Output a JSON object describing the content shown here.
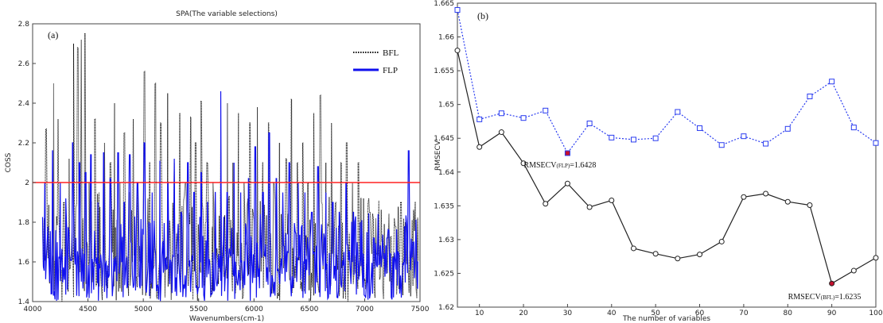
{
  "chart_data": [
    {
      "type": "line",
      "title": "SPA(The variable selections)",
      "panel_label": "(a)",
      "xlabel": "Wavenumbers(cm-1)",
      "ylabel": "COSS",
      "xlim": [
        4000,
        7500
      ],
      "ylim": [
        1.4,
        2.8
      ],
      "xticks": [
        "4000",
        "4500",
        "5000",
        "5500",
        "6000",
        "6500",
        "7000",
        "7500"
      ],
      "yticks": [
        "1.4",
        "1.6",
        "1.8",
        "2",
        "2.2",
        "2.4",
        "2.6",
        "2.8"
      ],
      "legend_position": "top-right",
      "threshold": 2,
      "threshold_color": "#ff2020",
      "series": [
        {
          "name": "BFL",
          "color": "#111111",
          "style": "dotted",
          "peaks": [
            [
              4120,
              2.27
            ],
            [
              4190,
              2.5
            ],
            [
              4230,
              2.32
            ],
            [
              4280,
              1.9
            ],
            [
              4330,
              2.12
            ],
            [
              4370,
              2.7
            ],
            [
              4410,
              2.68
            ],
            [
              4440,
              2.72
            ],
            [
              4470,
              2.75
            ],
            [
              4510,
              2.0
            ],
            [
              4560,
              2.32
            ],
            [
              4600,
              1.95
            ],
            [
              4650,
              2.2
            ],
            [
              4700,
              2.1
            ],
            [
              4740,
              2.4
            ],
            [
              4790,
              2.0
            ],
            [
              4830,
              2.25
            ],
            [
              4870,
              1.95
            ],
            [
              4910,
              2.32
            ],
            [
              4950,
              2.0
            ],
            [
              5010,
              2.56
            ],
            [
              5060,
              2.1
            ],
            [
              5110,
              2.5
            ],
            [
              5160,
              2.3
            ],
            [
              5220,
              2.45
            ],
            [
              5280,
              2.1
            ],
            [
              5330,
              2.35
            ],
            [
              5380,
              2.0
            ],
            [
              5430,
              2.33
            ],
            [
              5470,
              2.2
            ],
            [
              5520,
              2.41
            ],
            [
              5580,
              2.1
            ],
            [
              5630,
              2.0
            ],
            [
              5700,
              2.2
            ],
            [
              5760,
              2.4
            ],
            [
              5810,
              2.1
            ],
            [
              5860,
              2.35
            ],
            [
              5910,
              2.0
            ],
            [
              5960,
              2.3
            ],
            [
              6030,
              2.38
            ],
            [
              6080,
              2.1
            ],
            [
              6130,
              2.3
            ],
            [
              6180,
              2.0
            ],
            [
              6230,
              2.2
            ],
            [
              6290,
              2.12
            ],
            [
              6340,
              2.42
            ],
            [
              6390,
              2.1
            ],
            [
              6440,
              2.2
            ],
            [
              6490,
              2.0
            ],
            [
              6540,
              2.35
            ],
            [
              6600,
              2.44
            ],
            [
              6650,
              2.1
            ],
            [
              6700,
              2.3
            ],
            [
              6740,
              1.9
            ],
            [
              6790,
              2.1
            ],
            [
              6840,
              2.2
            ],
            [
              6890,
              2.0
            ],
            [
              6940,
              2.1
            ],
            [
              6990,
              1.92
            ],
            [
              7050,
              1.85
            ],
            [
              7100,
              1.82
            ],
            [
              7160,
              1.7
            ],
            [
              7220,
              1.84
            ],
            [
              7280,
              1.78
            ],
            [
              7330,
              1.9
            ],
            [
              7380,
              1.72
            ],
            [
              7440,
              1.86
            ],
            [
              7480,
              1.82
            ]
          ]
        },
        {
          "name": "FLP",
          "color": "#1010ee",
          "style": "solid",
          "peaks": [
            [
              4110,
              2.0
            ],
            [
              4180,
              2.16
            ],
            [
              4250,
              2.0
            ],
            [
              4300,
              1.92
            ],
            [
              4360,
              2.2
            ],
            [
              4420,
              2.1
            ],
            [
              4480,
              2.05
            ],
            [
              4530,
              2.14
            ],
            [
              4590,
              1.9
            ],
            [
              4640,
              2.15
            ],
            [
              4700,
              2.02
            ],
            [
              4770,
              2.15
            ],
            [
              4830,
              1.9
            ],
            [
              4880,
              2.14
            ],
            [
              4950,
              2.0
            ],
            [
              5010,
              2.2
            ],
            [
              5080,
              1.95
            ],
            [
              5150,
              2.11
            ],
            [
              5220,
              2.0
            ],
            [
              5280,
              2.12
            ],
            [
              5340,
              1.85
            ],
            [
              5400,
              2.1
            ],
            [
              5460,
              1.95
            ],
            [
              5520,
              2.05
            ],
            [
              5580,
              1.9
            ],
            [
              5650,
              1.95
            ],
            [
              5700,
              2.46
            ],
            [
              5760,
              1.95
            ],
            [
              5820,
              2.1
            ],
            [
              5880,
              1.95
            ],
            [
              5950,
              2.02
            ],
            [
              6010,
              2.18
            ],
            [
              6080,
              1.95
            ],
            [
              6140,
              2.25
            ],
            [
              6200,
              2.02
            ],
            [
              6260,
              1.95
            ],
            [
              6320,
              2.1
            ],
            [
              6400,
              2.0
            ],
            [
              6460,
              1.95
            ],
            [
              6520,
              1.85
            ],
            [
              6580,
              2.08
            ],
            [
              6650,
              1.95
            ],
            [
              6710,
              1.9
            ],
            [
              6770,
              1.85
            ],
            [
              6830,
              2.0
            ],
            [
              6900,
              1.85
            ],
            [
              6960,
              1.8
            ],
            [
              7020,
              1.75
            ],
            [
              7080,
              1.72
            ],
            [
              7140,
              1.68
            ],
            [
              7200,
              1.72
            ],
            [
              7260,
              1.62
            ],
            [
              7300,
              1.65
            ],
            [
              7360,
              1.78
            ],
            [
              7400,
              2.16
            ],
            [
              7440,
              1.7
            ],
            [
              7480,
              1.6
            ]
          ]
        }
      ]
    },
    {
      "type": "line",
      "panel_label": "(b)",
      "xlabel": "The number of variables",
      "ylabel": "RMSECV",
      "xlim": [
        5,
        100
      ],
      "ylim": [
        1.62,
        1.665
      ],
      "xticks": [
        "10",
        "20",
        "30",
        "40",
        "50",
        "60",
        "70",
        "80",
        "90",
        "100"
      ],
      "yticks": [
        "1.62",
        "1.625",
        "1.63",
        "1.635",
        "1.64",
        "1.645",
        "1.65",
        "1.655",
        "1.66",
        "1.665"
      ],
      "x": [
        5,
        10,
        15,
        20,
        25,
        30,
        35,
        40,
        45,
        50,
        55,
        60,
        65,
        70,
        75,
        80,
        85,
        90,
        95,
        100
      ],
      "series": [
        {
          "name": "FLP",
          "color": "#2a3cf0",
          "style": "dotted",
          "marker": "square",
          "values": [
            1.664,
            1.6478,
            1.6487,
            1.648,
            1.6491,
            1.6428,
            1.6472,
            1.6451,
            1.6448,
            1.645,
            1.6489,
            1.6465,
            1.644,
            1.6453,
            1.6442,
            1.6464,
            1.6512,
            1.6534,
            1.6466,
            1.6443
          ]
        },
        {
          "name": "BFL",
          "color": "#222222",
          "style": "solid",
          "marker": "circle",
          "values": [
            1.658,
            1.6437,
            1.6459,
            1.6413,
            1.6353,
            1.6383,
            1.6348,
            1.6358,
            1.6287,
            1.6279,
            1.6272,
            1.6278,
            1.6297,
            1.6363,
            1.6368,
            1.6356,
            1.6351,
            1.6235,
            1.6254,
            1.6273
          ]
        }
      ],
      "highlight_color": "#c4102e",
      "annotations": [
        {
          "pre": "RMSECV",
          "sub": "(FLP)",
          "post": "=1.6428",
          "series": "FLP",
          "x": 30,
          "y": 1.6428
        },
        {
          "pre": "RMSECV",
          "sub": "(BFL)",
          "post": "=1.6235",
          "series": "BFL",
          "x": 90,
          "y": 1.6235
        }
      ]
    }
  ]
}
